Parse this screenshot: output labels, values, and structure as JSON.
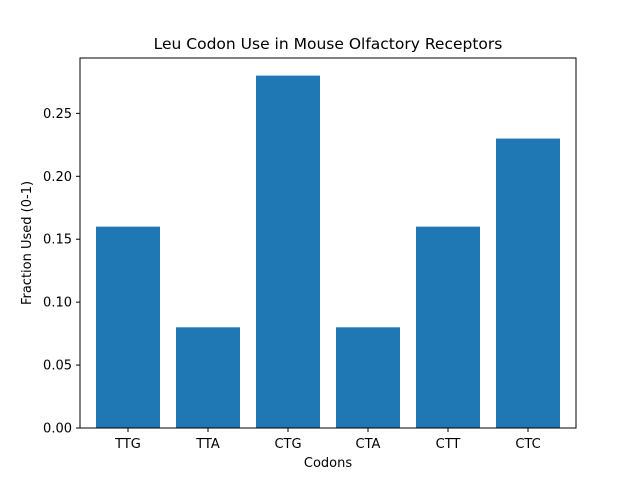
{
  "chart_data": {
    "type": "bar",
    "title": "Leu Codon Use in Mouse Olfactory Receptors",
    "xlabel": "Codons",
    "ylabel": "Fraction Used (0-1)",
    "categories": [
      "TTG",
      "TTA",
      "CTG",
      "CTA",
      "CTT",
      "CTC"
    ],
    "values": [
      0.16,
      0.08,
      0.28,
      0.08,
      0.16,
      0.23
    ],
    "ylim": [
      0,
      0.294
    ],
    "yticks": [
      "0.00",
      "0.05",
      "0.10",
      "0.15",
      "0.20",
      "0.25"
    ],
    "bar_color": "#1f77b4",
    "grid": false,
    "legend": "none"
  }
}
